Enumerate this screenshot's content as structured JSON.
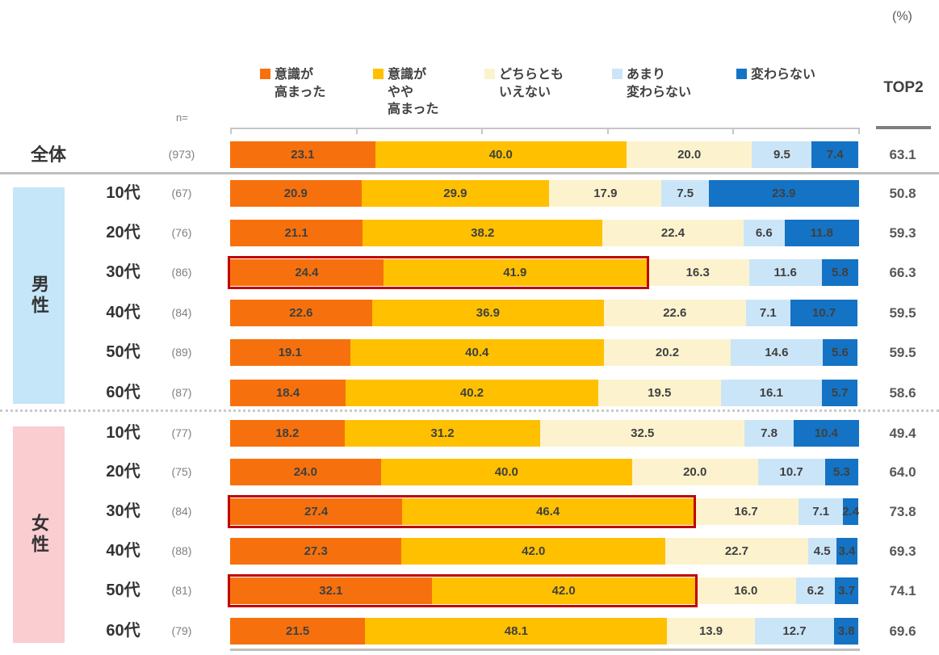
{
  "unit_label": "(%)",
  "n_header": "n=",
  "top2_header": "TOP2",
  "sections": {
    "male": {
      "label": "男性",
      "bg": "#C4E6F8"
    },
    "female": {
      "label": "女性",
      "bg": "#FACDD1"
    }
  },
  "colors": {
    "highlight_border": "#C00000",
    "divider": "#BFBFBF",
    "value_text": "#404040"
  },
  "chart_data": {
    "type": "bar",
    "stacked": true,
    "orientation": "horizontal",
    "xlim": [
      0,
      100
    ],
    "tick_interval": 20,
    "legend": [
      {
        "label": "意識が高まった",
        "lines": [
          "意識が",
          "高まった"
        ],
        "color": "#F6710D"
      },
      {
        "label": "意識がやや高まった",
        "lines": [
          "意識が",
          "やや",
          "高まった"
        ],
        "color": "#FFC000"
      },
      {
        "label": "どちらともいえない",
        "lines": [
          "どちらとも",
          "いえない"
        ],
        "color": "#FCF3CE"
      },
      {
        "label": "あまり変わらない",
        "lines": [
          "あまり",
          "変わらない"
        ],
        "color": "#CBE5F8"
      },
      {
        "label": "変わらない",
        "lines": [
          "変わらない"
        ],
        "color": "#1473C4"
      }
    ],
    "rows": [
      {
        "section": "overall",
        "label": "全体",
        "n": "(973)",
        "values": [
          "23.1",
          "40.0",
          "20.0",
          "9.5",
          "7.4"
        ],
        "top2": "63.1",
        "highlight": false
      },
      {
        "section": "male",
        "label": "10代",
        "n": "(67)",
        "values": [
          "20.9",
          "29.9",
          "17.9",
          "7.5",
          "23.9"
        ],
        "top2": "50.8",
        "highlight": false
      },
      {
        "section": "male",
        "label": "20代",
        "n": "(76)",
        "values": [
          "21.1",
          "38.2",
          "22.4",
          "6.6",
          "11.8"
        ],
        "top2": "59.3",
        "highlight": false
      },
      {
        "section": "male",
        "label": "30代",
        "n": "(86)",
        "values": [
          "24.4",
          "41.9",
          "16.3",
          "11.6",
          "5.8"
        ],
        "top2": "66.3",
        "highlight": true
      },
      {
        "section": "male",
        "label": "40代",
        "n": "(84)",
        "values": [
          "22.6",
          "36.9",
          "22.6",
          "7.1",
          "10.7"
        ],
        "top2": "59.5",
        "highlight": false
      },
      {
        "section": "male",
        "label": "50代",
        "n": "(89)",
        "values": [
          "19.1",
          "40.4",
          "20.2",
          "14.6",
          "5.6"
        ],
        "top2": "59.5",
        "highlight": false
      },
      {
        "section": "male",
        "label": "60代",
        "n": "(87)",
        "values": [
          "18.4",
          "40.2",
          "19.5",
          "16.1",
          "5.7"
        ],
        "top2": "58.6",
        "highlight": false
      },
      {
        "section": "female",
        "label": "10代",
        "n": "(77)",
        "values": [
          "18.2",
          "31.2",
          "32.5",
          "7.8",
          "10.4"
        ],
        "top2": "49.4",
        "highlight": false
      },
      {
        "section": "female",
        "label": "20代",
        "n": "(75)",
        "values": [
          "24.0",
          "40.0",
          "20.0",
          "10.7",
          "5.3"
        ],
        "top2": "64.0",
        "highlight": false
      },
      {
        "section": "female",
        "label": "30代",
        "n": "(84)",
        "values": [
          "27.4",
          "46.4",
          "16.7",
          "7.1",
          "2.4"
        ],
        "top2": "73.8",
        "highlight": true
      },
      {
        "section": "female",
        "label": "40代",
        "n": "(88)",
        "values": [
          "27.3",
          "42.0",
          "22.7",
          "4.5",
          "3.4"
        ],
        "top2": "69.3",
        "highlight": false
      },
      {
        "section": "female",
        "label": "50代",
        "n": "(81)",
        "values": [
          "32.1",
          "42.0",
          "16.0",
          "6.2",
          "3.7"
        ],
        "top2": "74.1",
        "highlight": true
      },
      {
        "section": "female",
        "label": "60代",
        "n": "(79)",
        "values": [
          "21.5",
          "48.1",
          "13.9",
          "12.7",
          "3.8"
        ],
        "top2": "69.6",
        "highlight": false
      }
    ]
  }
}
